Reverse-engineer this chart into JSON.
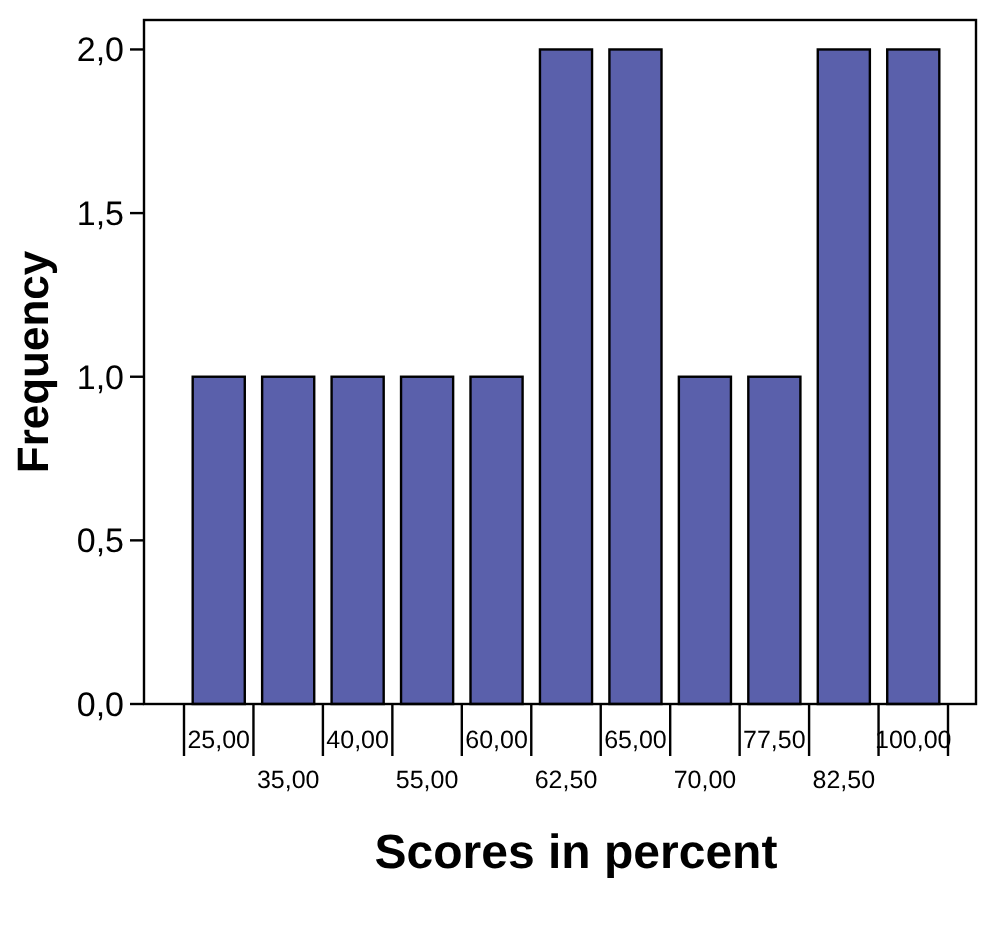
{
  "chart_data": {
    "type": "bar",
    "xlabel": "Scores in percent",
    "ylabel": "Frequency",
    "categories": [
      "25,00",
      "35,00",
      "40,00",
      "55,00",
      "60,00",
      "62,50",
      "65,00",
      "70,00",
      "77,50",
      "82,50",
      "100,00"
    ],
    "values": [
      1,
      1,
      1,
      1,
      1,
      2,
      2,
      1,
      1,
      2,
      2
    ],
    "color": "#5a60ab",
    "ylim": [
      0,
      2.09
    ],
    "yticks": [
      {
        "value": 0,
        "label": "0,0"
      },
      {
        "value": 0.5,
        "label": "0,5"
      },
      {
        "value": 1,
        "label": "1,0"
      },
      {
        "value": 1.5,
        "label": "1,5"
      },
      {
        "value": 2,
        "label": "2,0"
      }
    ],
    "grid": false
  }
}
